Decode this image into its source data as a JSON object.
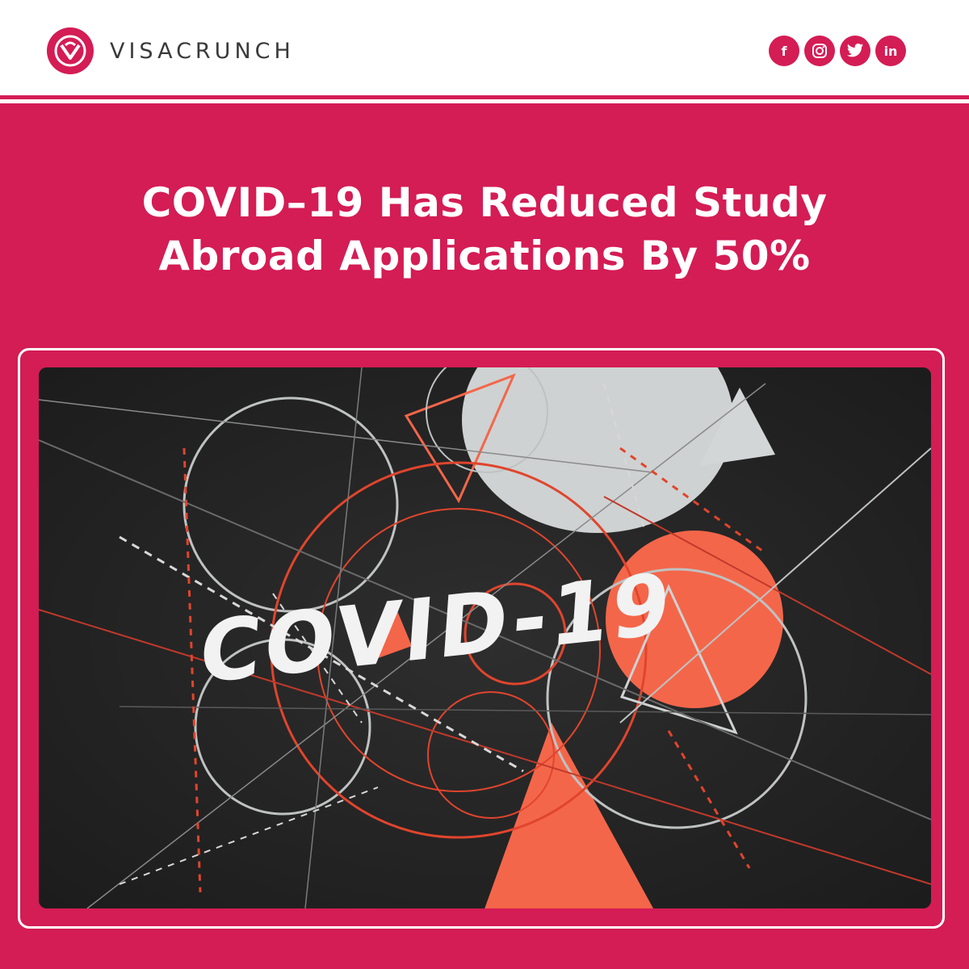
{
  "header": {
    "brand": "VISACRUNCH",
    "logo_icon": "visacrunch-logo-icon",
    "social": [
      {
        "name": "facebook-icon",
        "label": "f"
      },
      {
        "name": "instagram-icon",
        "label": ""
      },
      {
        "name": "twitter-icon",
        "label": ""
      },
      {
        "name": "linkedin-icon",
        "label": "in"
      }
    ]
  },
  "headline": {
    "line1": "COVID–19 Has Reduced Study",
    "line2": "Abroad Applications By 50%"
  },
  "image": {
    "text": "COVID-19"
  },
  "colors": {
    "brand": "#d41c55",
    "image_bg": "#252525",
    "accent_orange": "#f4664a"
  }
}
